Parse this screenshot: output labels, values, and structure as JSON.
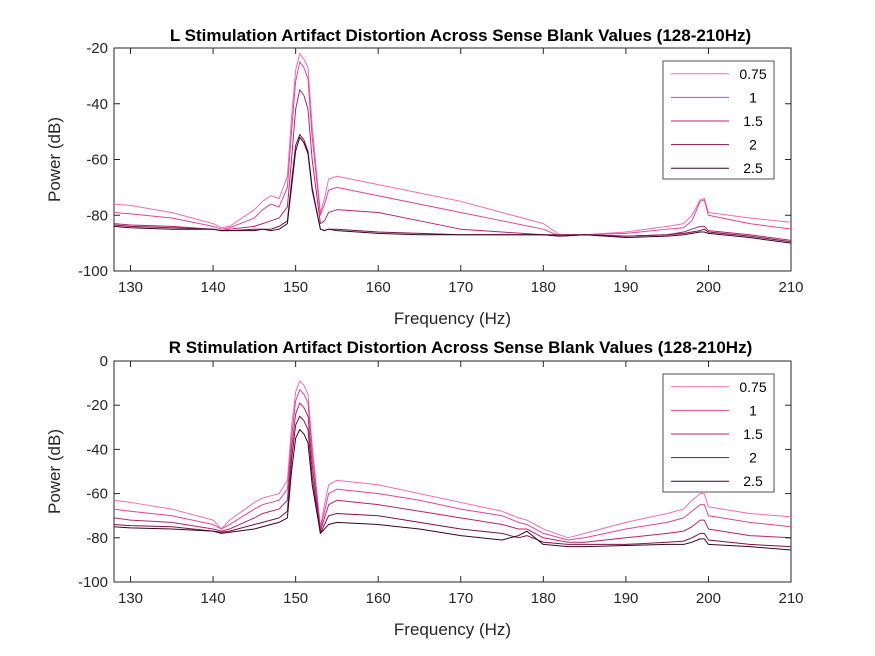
{
  "chart_data": [
    {
      "type": "line",
      "title": "L Stimulation Artifact Distortion Across Sense Blank Values (128-210Hz)",
      "xlabel": "Frequency (Hz)",
      "ylabel": "Power (dB)",
      "xlim": [
        128,
        210
      ],
      "ylim": [
        -100,
        -20
      ],
      "xticks": [
        130,
        140,
        150,
        160,
        170,
        180,
        190,
        200,
        210
      ],
      "yticks": [
        -100,
        -80,
        -60,
        -40,
        -20
      ],
      "grid": false,
      "legend_position": "top-right",
      "series": [
        {
          "name": "0.75",
          "color": "#f06db4",
          "x": [
            128,
            130,
            135,
            140,
            141,
            142,
            145,
            146,
            147,
            148,
            149,
            149.5,
            150,
            150.5,
            151,
            151.5,
            152,
            153,
            153.5,
            154,
            155,
            160,
            165,
            170,
            175,
            180,
            182,
            185,
            190,
            195,
            197,
            198,
            199,
            199.5,
            200,
            205,
            210
          ],
          "y": [
            -76,
            -76.5,
            -79,
            -83,
            -84.5,
            -84,
            -78,
            -75,
            -73,
            -74,
            -66,
            -45,
            -28,
            -22,
            -24,
            -27,
            -48,
            -79,
            -74,
            -67,
            -66,
            -69,
            -72,
            -75,
            -79,
            -83,
            -87,
            -87,
            -86,
            -84,
            -83,
            -80,
            -74.5,
            -74,
            -79,
            -81,
            -82.5
          ]
        },
        {
          "name": "1",
          "color": "#e0459a",
          "x": [
            128,
            130,
            135,
            140,
            141,
            142,
            145,
            146,
            147,
            148,
            149,
            149.5,
            150,
            150.5,
            151,
            151.5,
            152,
            153,
            153.5,
            154,
            155,
            160,
            165,
            170,
            175,
            180,
            182,
            185,
            190,
            195,
            197,
            198,
            199,
            199.5,
            200,
            205,
            210
          ],
          "y": [
            -79,
            -79.5,
            -81,
            -84,
            -85,
            -84.5,
            -81,
            -78,
            -76,
            -77,
            -70,
            -50,
            -32,
            -25,
            -27,
            -31,
            -52,
            -80,
            -76,
            -71,
            -70,
            -73,
            -76,
            -79,
            -82,
            -85,
            -87.5,
            -87,
            -86.5,
            -85,
            -84.5,
            -82,
            -75,
            -74.5,
            -80,
            -83,
            -85
          ]
        },
        {
          "name": "1.5",
          "color": "#b8236f",
          "x": [
            128,
            130,
            135,
            140,
            141,
            142,
            145,
            146,
            147,
            148,
            149,
            149.5,
            150,
            150.5,
            151,
            151.5,
            152,
            153,
            153.5,
            154,
            155,
            160,
            165,
            170,
            175,
            180,
            182,
            185,
            190,
            195,
            197,
            198,
            199,
            199.5,
            200,
            205,
            210
          ],
          "y": [
            -83,
            -83.5,
            -84,
            -85,
            -85.5,
            -85,
            -84,
            -83,
            -82,
            -81,
            -77,
            -60,
            -42,
            -35,
            -37,
            -42,
            -60,
            -83,
            -82,
            -79,
            -78,
            -79,
            -82,
            -85,
            -86,
            -87,
            -87.5,
            -87,
            -87.5,
            -87,
            -86,
            -85,
            -84,
            -84,
            -85.5,
            -87,
            -89
          ]
        },
        {
          "name": "2",
          "color": "#7e1149",
          "x": [
            128,
            130,
            135,
            140,
            141,
            142,
            145,
            146,
            147,
            148,
            149,
            149.5,
            150,
            150.5,
            151,
            151.5,
            152,
            153,
            153.5,
            154,
            155,
            160,
            165,
            170,
            175,
            180,
            182,
            185,
            190,
            195,
            197,
            198,
            199,
            199.5,
            200,
            205,
            210
          ],
          "y": [
            -83.5,
            -84,
            -84.5,
            -85,
            -85.5,
            -85.5,
            -85,
            -85,
            -85,
            -84,
            -82,
            -68,
            -55,
            -51,
            -53,
            -57,
            -70,
            -85,
            -85.5,
            -85,
            -85,
            -86,
            -86.5,
            -87,
            -87,
            -87,
            -87,
            -87,
            -87.5,
            -87,
            -86.5,
            -86,
            -85.5,
            -85,
            -86,
            -87.5,
            -89.5
          ]
        },
        {
          "name": "2.5",
          "color": "#3a0620",
          "x": [
            128,
            130,
            135,
            140,
            141,
            142,
            145,
            146,
            147,
            148,
            149,
            149.5,
            150,
            150.5,
            151,
            151.5,
            152,
            153,
            153.5,
            154,
            155,
            160,
            165,
            170,
            175,
            180,
            182,
            185,
            190,
            195,
            197,
            198,
            199,
            199.5,
            200,
            205,
            210
          ],
          "y": [
            -84,
            -84.5,
            -85,
            -85,
            -85.5,
            -85.5,
            -85.5,
            -85,
            -85.5,
            -85,
            -83,
            -70,
            -57,
            -52,
            -54,
            -58,
            -71,
            -85,
            -85.5,
            -85,
            -85.5,
            -86.5,
            -87,
            -87,
            -87,
            -87,
            -87.5,
            -87,
            -88,
            -87.5,
            -87,
            -86.5,
            -86,
            -86,
            -86.5,
            -88,
            -90
          ]
        }
      ]
    },
    {
      "type": "line",
      "title": "R Stimulation Artifact Distortion Across Sense Blank Values (128-210Hz)",
      "xlabel": "Frequency (Hz)",
      "ylabel": "Power (dB)",
      "xlim": [
        128,
        210
      ],
      "ylim": [
        -100,
        0
      ],
      "xticks": [
        130,
        140,
        150,
        160,
        170,
        180,
        190,
        200,
        210
      ],
      "yticks": [
        -100,
        -80,
        -60,
        -40,
        -20,
        0
      ],
      "grid": false,
      "legend_position": "top-right",
      "series": [
        {
          "name": "0.75",
          "color": "#f06db4",
          "x": [
            128,
            130,
            135,
            140,
            141,
            142,
            145,
            146,
            147,
            148,
            149,
            149.5,
            150,
            150.5,
            151,
            151.5,
            152,
            153,
            153.5,
            154,
            155,
            160,
            165,
            170,
            175,
            177,
            178,
            180,
            183,
            185,
            190,
            195,
            197,
            198,
            199,
            199.5,
            200,
            205,
            210
          ],
          "y": [
            -63,
            -64,
            -67,
            -72,
            -76,
            -72,
            -64,
            -62,
            -61,
            -60,
            -54,
            -30,
            -14,
            -9,
            -11,
            -15,
            -38,
            -75,
            -65,
            -56,
            -54,
            -56,
            -60,
            -64,
            -68,
            -71,
            -72,
            -76,
            -80,
            -78,
            -73,
            -69,
            -67,
            -63,
            -60,
            -60,
            -66,
            -69,
            -70.5
          ]
        },
        {
          "name": "1",
          "color": "#e0459a",
          "x": [
            128,
            130,
            135,
            140,
            141,
            142,
            145,
            146,
            147,
            148,
            149,
            149.5,
            150,
            150.5,
            151,
            151.5,
            152,
            153,
            153.5,
            154,
            155,
            160,
            165,
            170,
            175,
            177,
            178,
            180,
            183,
            185,
            190,
            195,
            197,
            198,
            199,
            199.5,
            200,
            205,
            210
          ],
          "y": [
            -67,
            -68,
            -70,
            -74,
            -76,
            -74,
            -67,
            -65,
            -64,
            -63,
            -58,
            -35,
            -18,
            -13,
            -15,
            -19,
            -42,
            -76,
            -68,
            -60,
            -58,
            -60,
            -63,
            -67,
            -70,
            -73,
            -74,
            -78,
            -81,
            -80,
            -76,
            -73,
            -71,
            -68,
            -65,
            -65,
            -70,
            -73,
            -75
          ]
        },
        {
          "name": "1.5",
          "color": "#b8236f",
          "x": [
            128,
            130,
            135,
            140,
            141,
            142,
            145,
            146,
            147,
            148,
            149,
            149.5,
            150,
            150.5,
            151,
            151.5,
            152,
            153,
            153.5,
            154,
            155,
            160,
            165,
            170,
            175,
            177,
            178,
            180,
            183,
            185,
            190,
            195,
            197,
            198,
            199,
            199.5,
            200,
            205,
            210
          ],
          "y": [
            -71,
            -72,
            -73,
            -76,
            -77,
            -76,
            -71,
            -69,
            -68,
            -67,
            -63,
            -40,
            -24,
            -19,
            -21,
            -25,
            -47,
            -77,
            -71,
            -65,
            -63,
            -65,
            -68,
            -71,
            -74,
            -76,
            -76,
            -80,
            -82,
            -82,
            -80,
            -78,
            -77,
            -75,
            -72,
            -72,
            -76,
            -79,
            -80
          ]
        },
        {
          "name": "2",
          "color": "#7e1149",
          "x": [
            128,
            130,
            135,
            140,
            141,
            142,
            145,
            146,
            147,
            148,
            149,
            149.5,
            150,
            150.5,
            151,
            151.5,
            152,
            153,
            153.5,
            154,
            155,
            160,
            165,
            170,
            175,
            177,
            178,
            180,
            183,
            185,
            190,
            195,
            197,
            198,
            199,
            199.5,
            200,
            205,
            210
          ],
          "y": [
            -74,
            -74.5,
            -75,
            -77,
            -77.5,
            -77,
            -74,
            -73,
            -72,
            -71,
            -68,
            -45,
            -29,
            -25,
            -27,
            -31,
            -52,
            -78,
            -74,
            -70,
            -69,
            -70,
            -73,
            -76,
            -78,
            -80,
            -79,
            -82,
            -83,
            -83,
            -83,
            -82,
            -81.5,
            -80,
            -78,
            -78,
            -81,
            -83,
            -84
          ]
        },
        {
          "name": "2.5",
          "color": "#3a0620",
          "x": [
            128,
            130,
            135,
            140,
            141,
            142,
            145,
            146,
            147,
            148,
            149,
            149.5,
            150,
            150.5,
            151,
            151.5,
            152,
            153,
            153.5,
            154,
            155,
            160,
            165,
            170,
            175,
            177,
            178,
            180,
            183,
            185,
            190,
            195,
            197,
            198,
            199,
            199.5,
            200,
            205,
            210
          ],
          "y": [
            -75,
            -75.5,
            -76,
            -77,
            -78,
            -77.5,
            -76,
            -75,
            -74,
            -73,
            -71,
            -50,
            -35,
            -31,
            -33,
            -37,
            -56,
            -78,
            -76,
            -74,
            -73,
            -74,
            -76,
            -79,
            -81,
            -79,
            -77,
            -83,
            -84,
            -84,
            -83.5,
            -83,
            -83,
            -82,
            -80.5,
            -80.5,
            -83,
            -84,
            -85.5
          ]
        }
      ]
    }
  ]
}
